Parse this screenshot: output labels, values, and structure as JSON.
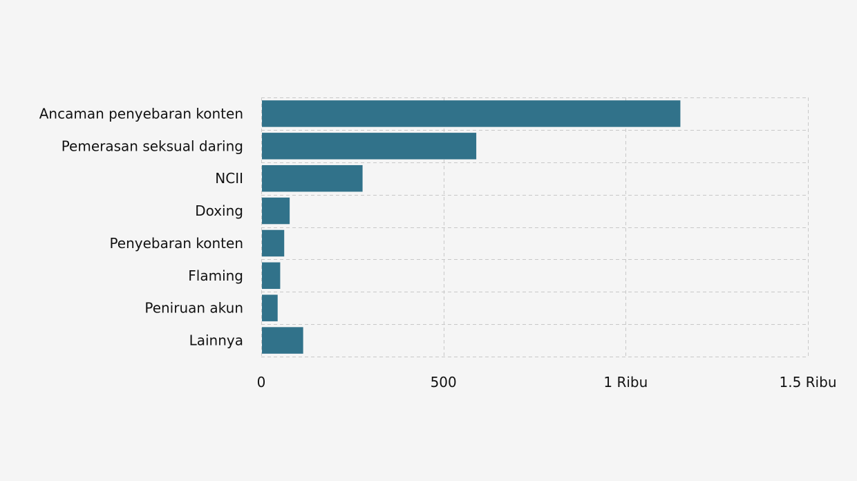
{
  "chart_data": {
    "type": "bar",
    "orientation": "horizontal",
    "categories": [
      "Ancaman penyebaran konten",
      "Pemerasan seksual daring",
      "NCII",
      "Doxing",
      "Penyebaran konten",
      "Flaming",
      "Peniruan akun",
      "Lainnya"
    ],
    "values": [
      1150,
      590,
      278,
      78,
      63,
      52,
      45,
      115
    ],
    "xlim": [
      0,
      1500
    ],
    "xticks": [
      0,
      500,
      1000,
      1500
    ],
    "xtick_labels": [
      "0",
      "500",
      "1 Ribu",
      "1.5 Ribu"
    ],
    "grid": true,
    "bar_color": "#31728a",
    "background": "#f5f5f5"
  }
}
